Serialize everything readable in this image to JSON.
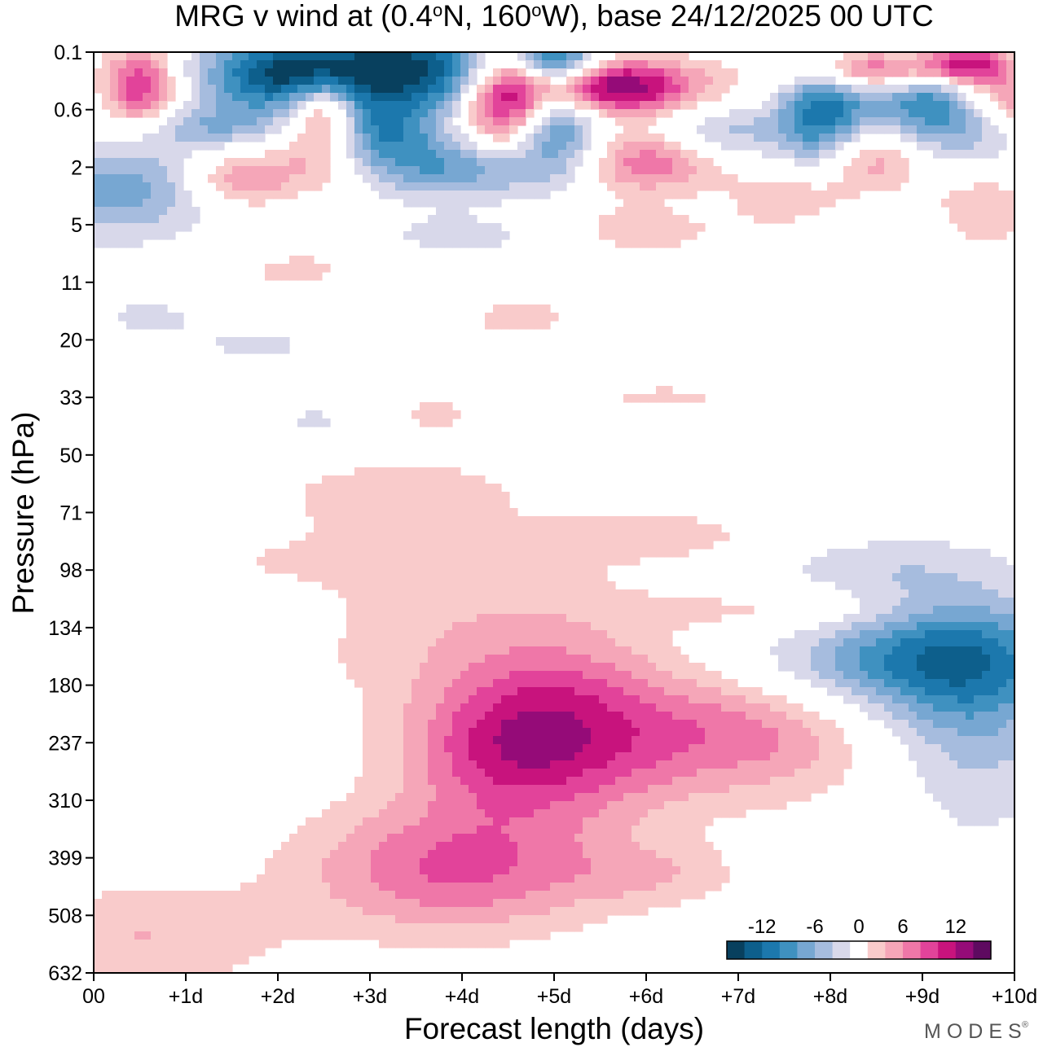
{
  "chart_data": {
    "type": "heatmap",
    "title_pre": "MRG v wind at (0.4",
    "title_deg1": "o",
    "title_mid": "N, 160",
    "title_deg2": "o",
    "title_post": "W),  base 24/12/2025  00 UTC",
    "xlabel": "Forecast length (days)",
    "ylabel": "Pressure (hPa)",
    "x_ticks": [
      "00",
      "+1d",
      "+2d",
      "+3d",
      "+4d",
      "+5d",
      "+6d",
      "+7d",
      "+8d",
      "+9d",
      "+10d"
    ],
    "y_ticks": [
      "0.1",
      "0.6",
      "2",
      "5",
      "11",
      "20",
      "33",
      "50",
      "71",
      "98",
      "134",
      "180",
      "237",
      "310",
      "399",
      "508",
      "632"
    ],
    "xlim": [
      0,
      10
    ],
    "colorbar": {
      "labels": [
        "-12",
        "-6",
        "0",
        "6",
        "12"
      ],
      "label_positions": [
        -12,
        -6,
        0,
        6,
        12
      ],
      "levels": [
        -16,
        -14,
        -12,
        -10,
        -8,
        -6,
        -4,
        -2,
        2,
        4,
        6,
        8,
        10,
        12,
        14,
        16
      ],
      "colors": [
        "#08405e",
        "#0d5f8c",
        "#1c78ad",
        "#3f91c0",
        "#77a7d2",
        "#a6bcde",
        "#d8d8ea",
        "#ffffff",
        "#f9cbcb",
        "#f5a6b8",
        "#ef77a8",
        "#e2439a",
        "#c8137d",
        "#950b78",
        "#5e0a60"
      ]
    },
    "blobs": [
      {
        "x": 4.9,
        "y": 11.7,
        "rx": 1.6,
        "ry": 1.8,
        "v": 6
      },
      {
        "x": 5.0,
        "y": 11.8,
        "rx": 1.2,
        "ry": 1.4,
        "v": 5
      },
      {
        "x": 4.3,
        "y": 12.2,
        "rx": 1.0,
        "ry": 1.0,
        "v": 3
      },
      {
        "x": 7.0,
        "y": 12.0,
        "rx": 1.3,
        "ry": 1.1,
        "v": 8
      },
      {
        "x": 6.9,
        "y": 12.3,
        "rx": 0.9,
        "ry": 0.9,
        "v": -2
      },
      {
        "x": 3.9,
        "y": 14.2,
        "rx": 1.7,
        "ry": 1.2,
        "v": 8
      },
      {
        "x": 6.1,
        "y": 14.3,
        "rx": 1.0,
        "ry": 0.6,
        "v": 3
      },
      {
        "x": 2.8,
        "y": 9.4,
        "rx": 3.0,
        "ry": 1.6,
        "v": 3
      },
      {
        "x": 1.0,
        "y": 12.1,
        "rx": 0.7,
        "ry": 1.0,
        "v": 1.5
      },
      {
        "x": 0.5,
        "y": 15.4,
        "rx": 1.6,
        "ry": 1.0,
        "v": 4
      },
      {
        "x": 9.4,
        "y": 10.5,
        "rx": 1.3,
        "ry": 1.2,
        "v": -9
      },
      {
        "x": 9.6,
        "y": 12.0,
        "rx": 0.9,
        "ry": 1.8,
        "v": -4
      },
      {
        "x": 8.3,
        "y": 10.6,
        "rx": 1.6,
        "ry": 0.8,
        "v": -4
      },
      {
        "x": 8.5,
        "y": 8.9,
        "rx": 1.4,
        "ry": 0.6,
        "v": -3
      },
      {
        "x": 7.5,
        "y": 9.7,
        "rx": 1.6,
        "ry": 0.4,
        "v": 2.5
      },
      {
        "x": 2.0,
        "y": 9.7,
        "rx": 0.9,
        "ry": 0.6,
        "v": -2.5
      },
      {
        "x": 1.0,
        "y": 8.2,
        "rx": 0.8,
        "ry": 0.4,
        "v": -2.5
      },
      {
        "x": 3.4,
        "y": 7.6,
        "rx": 1.4,
        "ry": 0.6,
        "v": 2.5
      },
      {
        "x": 6.2,
        "y": 8.4,
        "rx": 1.6,
        "ry": 0.5,
        "v": 2.5
      },
      {
        "x": 3.6,
        "y": 6.3,
        "rx": 0.8,
        "ry": 0.6,
        "v": 2.5
      },
      {
        "x": 2.5,
        "y": 6.4,
        "rx": 0.8,
        "ry": 0.5,
        "v": -2.5
      },
      {
        "x": 6.2,
        "y": 6.0,
        "rx": 0.9,
        "ry": 0.3,
        "v": 2.5
      },
      {
        "x": 1.8,
        "y": 5.1,
        "rx": 0.8,
        "ry": 0.4,
        "v": -2.5
      },
      {
        "x": 3.2,
        "y": 4.4,
        "rx": 0.8,
        "ry": 0.5,
        "v": -2.5
      },
      {
        "x": 2.3,
        "y": 3.8,
        "rx": 1.1,
        "ry": 0.6,
        "v": 2.5
      },
      {
        "x": 4.1,
        "y": 3.2,
        "rx": 1.4,
        "ry": 0.4,
        "v": -3
      },
      {
        "x": 4.5,
        "y": 4.6,
        "rx": 1.2,
        "ry": 0.6,
        "v": 2.5
      },
      {
        "x": 0.6,
        "y": 4.6,
        "rx": 0.8,
        "ry": 0.4,
        "v": -2.5
      },
      {
        "x": 0.3,
        "y": 2.4,
        "rx": 1.0,
        "ry": 0.9,
        "v": -7
      },
      {
        "x": 1.6,
        "y": 2.2,
        "rx": 0.6,
        "ry": 0.5,
        "v": 6
      },
      {
        "x": 2.5,
        "y": 1.9,
        "rx": 0.6,
        "ry": 0.6,
        "v": 5
      },
      {
        "x": 4.0,
        "y": 2.0,
        "rx": 1.3,
        "ry": 0.6,
        "v": -8
      },
      {
        "x": 5.9,
        "y": 2.9,
        "rx": 1.2,
        "ry": 0.6,
        "v": 6
      },
      {
        "x": 6.0,
        "y": 1.9,
        "rx": 0.8,
        "ry": 0.6,
        "v": 8
      },
      {
        "x": 7.7,
        "y": 2.6,
        "rx": 0.8,
        "ry": 0.6,
        "v": 6
      },
      {
        "x": 8.4,
        "y": 1.8,
        "rx": 0.7,
        "ry": 0.6,
        "v": 7
      },
      {
        "x": 9.6,
        "y": 2.8,
        "rx": 0.7,
        "ry": 0.7,
        "v": 5
      },
      {
        "x": 6.0,
        "y": 2.7,
        "rx": 1.3,
        "ry": 0.5,
        "v": -4
      },
      {
        "x": 8.5,
        "y": 3.0,
        "rx": 1.4,
        "ry": 0.6,
        "v": -3
      },
      {
        "x": 3.4,
        "y": 0.3,
        "rx": 1.2,
        "ry": 0.8,
        "v": -15
      },
      {
        "x": 2.0,
        "y": 0.4,
        "rx": 0.9,
        "ry": 0.7,
        "v": -12
      },
      {
        "x": 5.0,
        "y": 0.1,
        "rx": 0.5,
        "ry": 0.5,
        "v": -12
      },
      {
        "x": 5.0,
        "y": 1.2,
        "rx": 0.5,
        "ry": 0.8,
        "v": -10
      },
      {
        "x": 7.9,
        "y": 1.1,
        "rx": 0.5,
        "ry": 1.2,
        "v": -11
      },
      {
        "x": 9.2,
        "y": 0.8,
        "rx": 0.9,
        "ry": 1.0,
        "v": -12
      },
      {
        "x": 4.5,
        "y": 0.8,
        "rx": 0.5,
        "ry": 1.0,
        "v": 14
      },
      {
        "x": 5.6,
        "y": 0.6,
        "rx": 1.0,
        "ry": 0.5,
        "v": 15
      },
      {
        "x": 0.5,
        "y": 0.6,
        "rx": 0.4,
        "ry": 0.7,
        "v": 10
      },
      {
        "x": 2.5,
        "y": 1.0,
        "rx": 0.4,
        "ry": 0.6,
        "v": 10
      },
      {
        "x": 8.5,
        "y": 0.3,
        "rx": 1.0,
        "ry": 0.4,
        "v": 12
      },
      {
        "x": 9.5,
        "y": 0.2,
        "rx": 0.5,
        "ry": 0.4,
        "v": 14
      },
      {
        "x": 9.9,
        "y": 0.8,
        "rx": 0.6,
        "ry": 0.5,
        "v": 10
      },
      {
        "x": 1.3,
        "y": 1.3,
        "rx": 0.8,
        "ry": 0.4,
        "v": -5
      },
      {
        "x": 3.1,
        "y": 1.4,
        "rx": 0.6,
        "ry": 0.6,
        "v": -8
      },
      {
        "x": 6.8,
        "y": 1.4,
        "rx": 0.8,
        "ry": 0.5,
        "v": -5
      }
    ]
  },
  "branding": {
    "name": "MODES",
    "mark": "®"
  }
}
